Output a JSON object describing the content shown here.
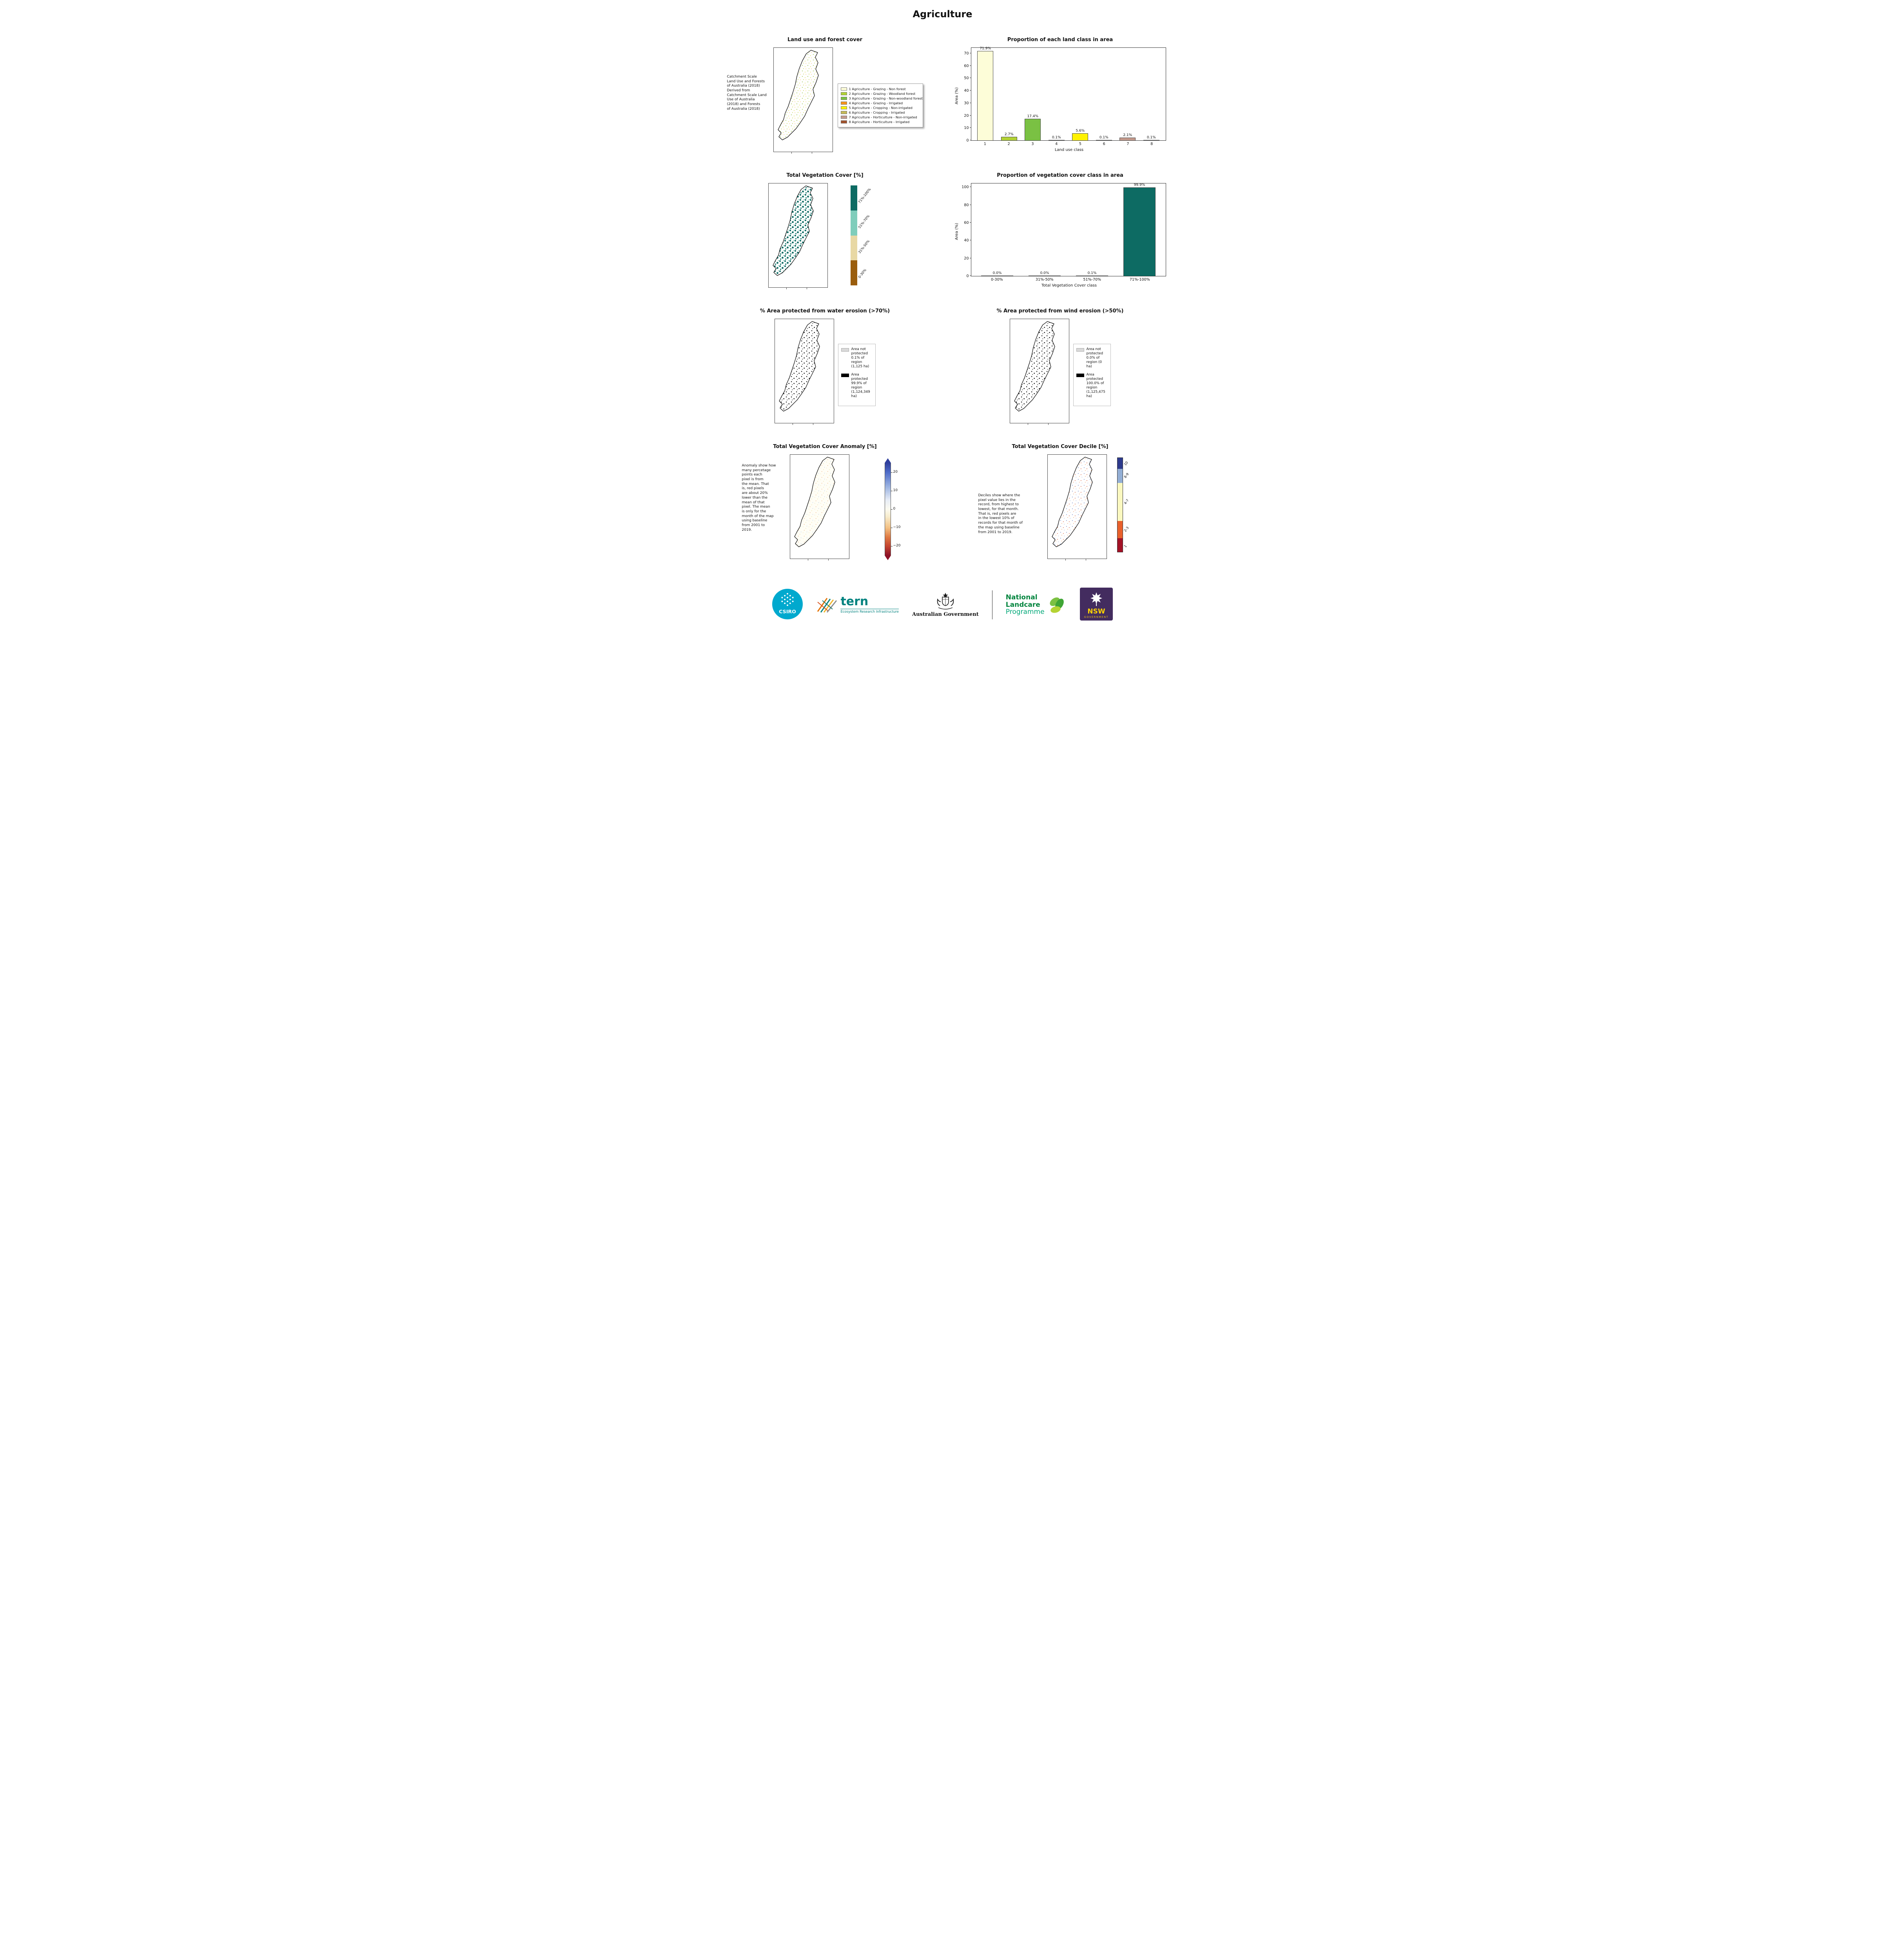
{
  "page_title": "Agriculture",
  "panels": {
    "land_use": {
      "title": "Land use and forest cover",
      "side_note": "Catchment Scale\nLand Use and Forests\nof Australia (2018)\nDerived from\nCatchment Scale Land\nUse of Australia\n(2018) and Forests\nof Australia (2018)",
      "legend": [
        {
          "label": "1 Agriculture - Grazing - Non forest",
          "color": "#fdfdd8"
        },
        {
          "label": "2 Agriculture - Grazing - Woodland forest",
          "color": "#b2d235"
        },
        {
          "label": "3 Agriculture - Grazing - Non-woodland forest",
          "color": "#7ac143"
        },
        {
          "label": "4 Agriculture - Grazing - Irrigated",
          "color": "#f7941d"
        },
        {
          "label": "5 Agriculture - Cropping - Non-irrigated",
          "color": "#fff200"
        },
        {
          "label": "6 Agriculture - Cropping - Irrigated",
          "color": "#c5b957"
        },
        {
          "label": "7 Agriculture - Horticulture - Non-irrigated",
          "color": "#c49a8c"
        },
        {
          "label": "8 Agriculture - Horticulture - Irrigated",
          "color": "#a0522d"
        }
      ]
    },
    "veg_cover": {
      "title": "Total Vegetation Cover [%]",
      "colorbar": [
        {
          "label": "71%-100%",
          "color": "#0d6b63"
        },
        {
          "label": "51%-70%",
          "color": "#7fcdbb"
        },
        {
          "label": "31%-50%",
          "color": "#e8d8a4"
        },
        {
          "label": "0-30%",
          "color": "#9a5d0d"
        }
      ]
    },
    "water_erosion": {
      "title": "% Area protected from water erosion (>70%)",
      "legend": [
        {
          "swatch": "#d9d9d9",
          "text": "Area not\nprotected\n0.1% of\nregion\n(1,125 ha)"
        },
        {
          "swatch": "#000000",
          "text": "Area\nprotected\n99.9% of\nregion\n(1,124,349\nha)"
        }
      ]
    },
    "wind_erosion": {
      "title": "% Area protected from wind erosion (>50%)",
      "legend": [
        {
          "swatch": "#d9d9d9",
          "text": "Area not\nprotected\n0.0% of\nregion (0\nha)"
        },
        {
          "swatch": "#000000",
          "text": "Area\nprotected\n100.0% of\nregion\n(1,125,475\nha)"
        }
      ]
    },
    "anomaly": {
      "title": "Total Vegetation Cover Anomaly [%]",
      "side_note": "Anomaly show how\nmany percetage\npoints each\npixel is from\nthe mean. That\nis, red pixels\nare about 20%\nlower than the\nmean of that\npixel. The mean\nis only for the\nmonth of the map\nusing baseline\nfrom 2001 to\n2019.",
      "colorbar_ticks": [
        20,
        10,
        0,
        -10,
        -20
      ],
      "colorbar_range": [
        -25,
        25
      ]
    },
    "decile": {
      "title": "Total Vegetation Cover Decile [%]",
      "side_note": "Deciles show where the\npixel value lies in the\nrecord, from highest to\nlowest, for that month.\nThat is, red pixels are\nin the lowest 10% of\nrecords for that month of\nthe map using baseline\nfrom 2001 to 2019.",
      "colorbar": [
        {
          "label": "10",
          "color": "#2d3a8c",
          "h": 12
        },
        {
          "label": "8-9",
          "color": "#93aed4",
          "h": 15
        },
        {
          "label": "4-7",
          "color": "#fbf8c0",
          "h": 40
        },
        {
          "label": "2-3",
          "color": "#e8602c",
          "h": 18
        },
        {
          "label": "1",
          "color": "#a31226",
          "h": 15
        }
      ]
    }
  },
  "chart_data": [
    {
      "type": "bar",
      "title": "Proportion of each land class in area",
      "categories": [
        "1",
        "2",
        "3",
        "4",
        "5",
        "6",
        "7",
        "8"
      ],
      "values": [
        71.9,
        2.7,
        17.4,
        0.1,
        5.6,
        0.1,
        2.1,
        0.1
      ],
      "value_labels": [
        "71.9%",
        "2.7%",
        "17.4%",
        "0.1%",
        "5.6%",
        "0.1%",
        "2.1%",
        "0.1%"
      ],
      "colors": [
        "#fdfdd8",
        "#b2d235",
        "#7ac143",
        "#f7941d",
        "#fff200",
        "#c5b957",
        "#c49a8c",
        "#a0522d"
      ],
      "xlabel": "Land use class",
      "ylabel": "Area (%)",
      "yticks": [
        0,
        10,
        20,
        30,
        40,
        50,
        60,
        70
      ],
      "ylim": [
        0,
        75
      ],
      "legend_position": "none",
      "grid": false
    },
    {
      "type": "bar",
      "title": "Proportion of vegetation cover class in area",
      "categories": [
        "0-30%",
        "31%-50%",
        "51%-70%",
        "71%-100%"
      ],
      "values": [
        0.0,
        0.0,
        0.1,
        99.9
      ],
      "value_labels": [
        "0.0%",
        "0.0%",
        "0.1%",
        "99.9%"
      ],
      "colors": [
        "#0d6b63",
        "#0d6b63",
        "#0d6b63",
        "#0d6b63"
      ],
      "xlabel": "Total Vegetation Cover class",
      "ylabel": "Area (%)",
      "yticks": [
        0,
        20,
        40,
        60,
        80,
        100
      ],
      "ylim": [
        0,
        105
      ],
      "legend_position": "none",
      "grid": false
    }
  ],
  "footer": {
    "csiro": {
      "name": "CSIRO"
    },
    "tern": {
      "name": "tern",
      "tagline": "Ecosystem Research Infrastructure"
    },
    "aus_gov": {
      "name": "Australian Government"
    },
    "landcare": {
      "line1": "National",
      "line2": "Landcare",
      "line3": "Programme"
    },
    "nsw": {
      "name": "NSW",
      "sub": "GOVERNMENT"
    }
  }
}
